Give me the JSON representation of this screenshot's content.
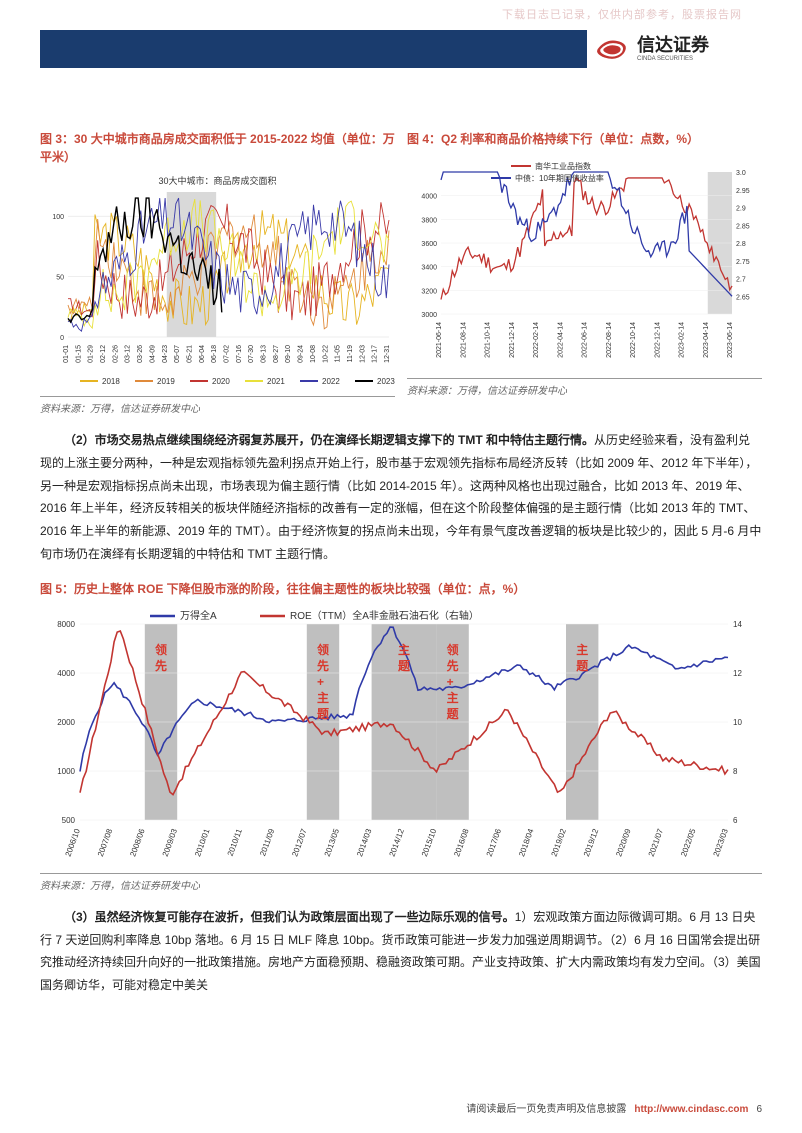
{
  "watermark": "下载日志已记录，仅供内部参考，股票报告网",
  "brand": {
    "cn": "信达证券",
    "en": "CINDA SECURITIES"
  },
  "chart3": {
    "type": "line",
    "title": "图 3：30 大中城市商品房成交面积低于 2015-2022 均值（单位：万平米）",
    "legend_title": "30大中城市：商品房成交面积",
    "series_labels": [
      "2018",
      "2019",
      "2020",
      "2021",
      "2022",
      "2023"
    ],
    "series_colors": [
      "#e6b422",
      "#e08a3a",
      "#c23531",
      "#e8e03a",
      "#3a3aa8",
      "#000000"
    ],
    "shade_color": "#d9d9d9",
    "ylim": [
      0,
      120
    ],
    "ytick_step": 50,
    "xticks": [
      "01-01",
      "01-15",
      "01-29",
      "02-12",
      "02-26",
      "03-12",
      "03-26",
      "04-09",
      "04-23",
      "05-07",
      "05-21",
      "06-04",
      "06-18",
      "07-02",
      "07-16",
      "07-30",
      "08-13",
      "08-27",
      "09-10",
      "09-24",
      "10-08",
      "10-22",
      "11-05",
      "11-19",
      "12-03",
      "12-17",
      "12-31"
    ],
    "shade_x": [
      "04-23",
      "06-18"
    ],
    "tick_fontsize": 7,
    "source": "资料来源：万得，信达证券研发中心"
  },
  "chart4": {
    "type": "line",
    "title": "图 4：Q2 利率和商品价格持续下行（单位：点数，%）",
    "series_labels": [
      "南华工业品指数",
      "中债：10年期国债收益率"
    ],
    "series_colors": [
      "#c23531",
      "#2f3aa8"
    ],
    "shade_color": "#d9d9d9",
    "ylim_left": [
      3000,
      4200
    ],
    "ytick_left": [
      3000,
      3200,
      3400,
      3600,
      3800,
      4000
    ],
    "ylim_right": [
      2.6,
      3.0
    ],
    "ytick_right": [
      2.65,
      2.7,
      2.75,
      2.8,
      2.85,
      2.9,
      2.95,
      3.0
    ],
    "xticks": [
      "2021-06-14",
      "2021-08-14",
      "2021-10-14",
      "2021-12-14",
      "2022-02-14",
      "2022-04-14",
      "2022-06-14",
      "2022-08-14",
      "2022-10-14",
      "2022-12-14",
      "2023-02-14",
      "2023-04-14",
      "2023-06-14"
    ],
    "shade_x": [
      "2023-04-14",
      "2023-06-14"
    ],
    "tick_fontsize": 7,
    "source": "资料来源：万得，信达证券研发中心"
  },
  "para2": {
    "lead": "（2）市场交易热点继续围绕经济弱复苏展开，仍在演绎长期逻辑支撑下的 TMT 和中特估主题行情。",
    "body": "从历史经验来看，没有盈利兑现的上涨主要分两种，一种是宏观指标领先盈利拐点开始上行，股市基于宏观领先指标布局经济反转（比如 2009 年、2012 年下半年），另一种是宏观指标拐点尚未出现，市场表现为偏主题行情（比如 2014-2015 年）。这两种风格也出现过融合，比如 2013 年、2019 年、2016 年上半年，经济反转相关的板块伴随经济指标的改善有一定的涨幅，但在这个阶段整体偏强的是主题行情（比如 2013 年的 TMT、2016 年上半年的新能源、2019 年的 TMT）。由于经济恢复的拐点尚未出现，今年有景气度改善逻辑的板块是比较少的，因此 5 月-6 月中旬市场仍在演绎有长期逻辑的中特估和 TMT 主题行情。"
  },
  "chart5": {
    "type": "line",
    "title": "图 5：历史上整体 ROE 下降但股市涨的阶段，往往偏主题性的板块比较强（单位：点，%）",
    "series_labels": [
      "万得全A",
      "ROE（TTM）全A非金融石油石化（右轴）"
    ],
    "series_colors": [
      "#2f3aa8",
      "#c23531"
    ],
    "shade_color": "#bfbfbf",
    "ylim_left": [
      500,
      8000
    ],
    "ytick_left": [
      500,
      1000,
      2000,
      4000,
      8000
    ],
    "yscale_left": "log",
    "ylim_right": [
      6,
      14
    ],
    "ytick_right": [
      6,
      8,
      10,
      12,
      14
    ],
    "xticks": [
      "2006/10",
      "2007/08",
      "2008/06",
      "2009/03",
      "2010/01",
      "2010/11",
      "2011/09",
      "2012/07",
      "2013/05",
      "2014/03",
      "2014/12",
      "2015/10",
      "2016/08",
      "2017/06",
      "2018/04",
      "2019/02",
      "2019/12",
      "2020/09",
      "2021/07",
      "2022/05",
      "2023/03"
    ],
    "shades": [
      [
        "2008/06",
        "2009/03"
      ],
      [
        "2012/07",
        "2013/05"
      ],
      [
        "2014/03",
        "2015/10"
      ],
      [
        "2015/10",
        "2016/08"
      ],
      [
        "2019/02",
        "2019/12"
      ]
    ],
    "annotations": [
      "领先",
      "领先+主题",
      "主题",
      "领先+主题",
      "主题"
    ],
    "tick_fontsize": 8,
    "source": "资料来源：万得，信达证券研发中心"
  },
  "para3": {
    "lead": "（3）虽然经济恢复可能存在波折，但我们认为政策层面出现了一些边际乐观的信号。",
    "body": "1）宏观政策方面边际微调可期。6 月 13 日央行 7 天逆回购利率降息 10bp 落地。6 月 15 日 MLF 降息 10bp。货币政策可能进一步发力加强逆周期调节。（2）6 月 16 日国常会提出研究推动经济持续回升向好的一批政策措施。房地产方面稳预期、稳融资政策可期。产业支持政策、扩大内需政策均有发力空间。（3）美国国务卿访华，可能对稳定中美关"
  },
  "footer": {
    "disclaimer": "请阅读最后一页免责声明及信息披露",
    "url": "http://www.cindasc.com",
    "page": "6"
  }
}
